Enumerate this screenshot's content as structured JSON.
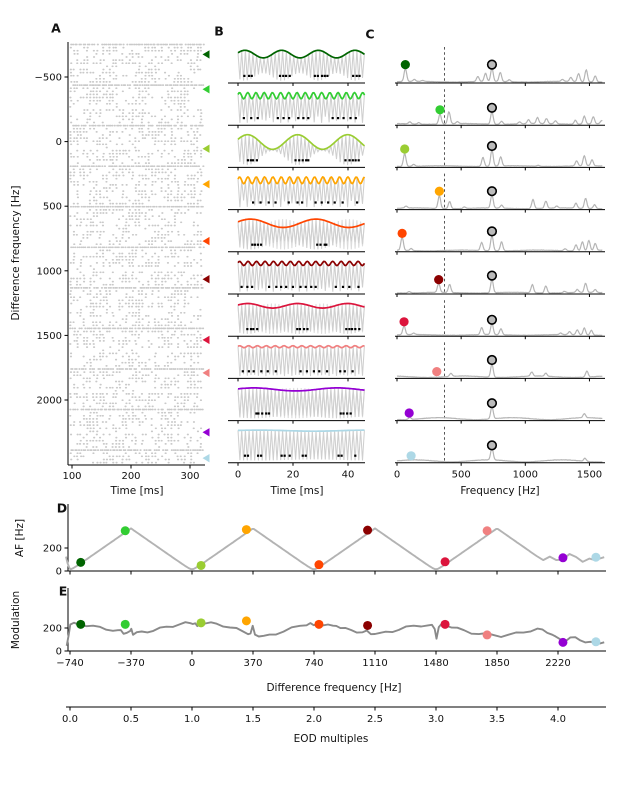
{
  "chart_data": {
    "type": "multi-panel-figure",
    "series": [
      {
        "name": "darkgreen",
        "color": "#006400",
        "df_hz": -675,
        "af_hz": 75,
        "modulation": 232,
        "beat": {
          "env_hz": 75,
          "depth": 0.5,
          "style": "smooth"
        },
        "spectrum": {
          "dot_hz": 65,
          "dot_h": 13,
          "floor": 0.8,
          "peaks": [
            [
              65,
              13
            ],
            [
              135,
              2
            ],
            [
              200,
              1
            ],
            [
              630,
              5
            ],
            [
              690,
              8
            ],
            [
              740,
              13
            ],
            [
              805,
              9
            ],
            [
              875,
              2
            ],
            [
              1290,
              2
            ],
            [
              1355,
              4
            ],
            [
              1415,
              8
            ],
            [
              1475,
              12
            ],
            [
              1545,
              6
            ]
          ]
        }
      },
      {
        "name": "limegreen",
        "color": "#32cd32",
        "df_hz": -405,
        "af_hz": 350,
        "modulation": 232,
        "beat": {
          "env_hz": 335,
          "depth": 0.42,
          "style": "jagged"
        },
        "spectrum": {
          "dot_hz": 335,
          "dot_h": 10,
          "floor": 0.8,
          "peaks": [
            [
              100,
              2
            ],
            [
              170,
              1.5
            ],
            [
              335,
              10
            ],
            [
              405,
              12
            ],
            [
              470,
              2
            ],
            [
              740,
              12
            ],
            [
              815,
              3
            ],
            [
              955,
              2
            ],
            [
              1025,
              4
            ],
            [
              1095,
              6
            ],
            [
              1165,
              5
            ],
            [
              1235,
              3
            ],
            [
              1390,
              4
            ],
            [
              1460,
              8
            ],
            [
              1530,
              7
            ],
            [
              1595,
              3
            ]
          ]
        }
      },
      {
        "name": "yellowgreen",
        "color": "#9acd32",
        "df_hz": 55,
        "af_hz": 48,
        "modulation": 245,
        "beat": {
          "env_hz": 55,
          "depth": 0.96,
          "style": "smooth"
        },
        "spectrum": {
          "dot_hz": 60,
          "dot_h": 13,
          "floor": 0.8,
          "peaks": [
            [
              60,
              13
            ],
            [
              130,
              2
            ],
            [
              670,
              9
            ],
            [
              740,
              16
            ],
            [
              808,
              9
            ],
            [
              1100,
              1
            ],
            [
              1400,
              5
            ],
            [
              1460,
              10
            ],
            [
              1520,
              6
            ]
          ]
        }
      },
      {
        "name": "orange",
        "color": "#ffa500",
        "df_hz": 330,
        "af_hz": 360,
        "modulation": 262,
        "beat": {
          "env_hz": 330,
          "depth": 0.45,
          "style": "jagged"
        },
        "spectrum": {
          "dot_hz": 330,
          "dot_h": 13,
          "floor": 0.8,
          "peaks": [
            [
              70,
              2
            ],
            [
              330,
              13
            ],
            [
              410,
              7
            ],
            [
              525,
              1.5
            ],
            [
              740,
              13
            ],
            [
              815,
              3
            ],
            [
              1060,
              9
            ],
            [
              1160,
              7
            ],
            [
              1245,
              2
            ],
            [
              1395,
              5
            ],
            [
              1470,
              10
            ],
            [
              1540,
              4
            ]
          ]
        }
      },
      {
        "name": "orangered",
        "color": "#ff4500",
        "df_hz": 770,
        "af_hz": 55,
        "modulation": 232,
        "beat": {
          "env_hz": 42,
          "depth": 0.55,
          "style": "smooth-cross"
        },
        "spectrum": {
          "dot_hz": 40,
          "dot_h": 13,
          "floor": 0.8,
          "peaks": [
            [
              40,
              13
            ],
            [
              110,
              2
            ],
            [
              660,
              8
            ],
            [
              740,
              15
            ],
            [
              815,
              9
            ],
            [
              1310,
              2
            ],
            [
              1395,
              6
            ],
            [
              1445,
              9
            ],
            [
              1495,
              10
            ],
            [
              1545,
              7
            ]
          ]
        }
      },
      {
        "name": "darkred",
        "color": "#8b0000",
        "df_hz": 1065,
        "af_hz": 355,
        "modulation": 222,
        "beat": {
          "env_hz": 325,
          "depth": 0.28,
          "style": "jagged"
        },
        "spectrum": {
          "dot_hz": 325,
          "dot_h": 9,
          "floor": 0.8,
          "peaks": [
            [
              95,
              1.5
            ],
            [
              325,
              9
            ],
            [
              410,
              8
            ],
            [
              740,
              13
            ],
            [
              1055,
              8
            ],
            [
              1160,
              7
            ],
            [
              1305,
              1.5
            ],
            [
              1405,
              3
            ],
            [
              1470,
              9
            ],
            [
              1545,
              3
            ]
          ]
        }
      },
      {
        "name": "crimson",
        "color": "#dc143c",
        "df_hz": 1535,
        "af_hz": 80,
        "modulation": 232,
        "beat": {
          "env_hz": 55,
          "depth": 0.3,
          "style": "smooth-cross"
        },
        "spectrum": {
          "dot_hz": 55,
          "dot_h": 9,
          "floor": 0.8,
          "peaks": [
            [
              55,
              9
            ],
            [
              130,
              1.5
            ],
            [
              660,
              7
            ],
            [
              740,
              11
            ],
            [
              810,
              6
            ],
            [
              1275,
              1.5
            ],
            [
              1345,
              3
            ],
            [
              1405,
              5
            ],
            [
              1460,
              7
            ],
            [
              1515,
              5
            ]
          ]
        }
      },
      {
        "name": "lightcoral",
        "color": "#f08080",
        "df_hz": 1790,
        "af_hz": 350,
        "modulation": 140,
        "beat": {
          "env_hz": 310,
          "depth": 0.13,
          "style": "jagged"
        },
        "spectrum": {
          "dot_hz": 310,
          "dot_h": 1.4,
          "floor": 1.6,
          "peaks": [
            [
              420,
              3
            ],
            [
              740,
              13
            ],
            [
              1050,
              4
            ],
            [
              1160,
              3
            ],
            [
              1480,
              6
            ]
          ]
        }
      },
      {
        "name": "darkviolet",
        "color": "#9400d3",
        "df_hz": 2250,
        "af_hz": 115,
        "modulation": 75,
        "beat": {
          "env_hz": 33,
          "depth": 0.2,
          "style": "smooth-cross"
        },
        "spectrum": {
          "dot_hz": 95,
          "dot_h": 2.2,
          "floor": 2.2,
          "peaks": [
            [
              100,
              2
            ],
            [
              740,
              12
            ],
            [
              1460,
              4
            ]
          ]
        }
      },
      {
        "name": "lightblue",
        "color": "#add8e6",
        "df_hz": 2450,
        "af_hz": 120,
        "modulation": 80,
        "beat": {
          "env_hz": 25,
          "depth": 0.07,
          "style": "smooth"
        },
        "spectrum": {
          "dot_hz": 110,
          "dot_h": 1.6,
          "floor": 2.2,
          "peaks": [
            [
              740,
              12
            ],
            [
              1465,
              3
            ]
          ]
        }
      }
    ],
    "panelA": {
      "label": "A",
      "xlabel": "Time [ms]",
      "ylabel": "Difference frequency [Hz]",
      "xticks": [
        {
          "v": 100,
          "label": "100"
        },
        {
          "v": 200,
          "label": "200"
        },
        {
          "v": 300,
          "label": "300"
        }
      ],
      "yticks": [
        {
          "v": -500,
          "label": "−500"
        },
        {
          "v": 0,
          "label": "0"
        },
        {
          "v": 500,
          "label": "500"
        },
        {
          "v": 1000,
          "label": "1000"
        },
        {
          "v": 1500,
          "label": "1500"
        },
        {
          "v": 2000,
          "label": "2000"
        }
      ],
      "x_range_ms": [
        93,
        325
      ],
      "y_range_hz": [
        -771,
        2503
      ]
    },
    "panelB": {
      "label": "B",
      "xlabel": "Time [ms]",
      "carrier_hz": 740,
      "duration_ms": 46,
      "xticks": [
        {
          "v": 0,
          "label": "0"
        },
        {
          "v": 20,
          "label": "20"
        },
        {
          "v": 40,
          "label": "40"
        }
      ]
    },
    "panelC": {
      "label": "C",
      "xlabel": "Frequency [Hz]",
      "dashed_line_hz": 370,
      "eod_peak_hz": 740,
      "xticks": [
        {
          "v": 0,
          "label": "0"
        },
        {
          "v": 500,
          "label": "500"
        },
        {
          "v": 1000,
          "label": "1000"
        },
        {
          "v": 1500,
          "label": "1500"
        }
      ],
      "freq_range_hz": [
        0,
        1600
      ]
    },
    "panelD": {
      "label": "D",
      "ylabel": "AF [Hz]",
      "fold_period_hz": 740,
      "yticks": [
        {
          "v": 0,
          "label": "0"
        },
        {
          "v": 200,
          "label": "200"
        }
      ],
      "curve_head": [
        [
          -764,
          125
        ],
        [
          -755,
          70
        ],
        [
          -745,
          30
        ]
      ],
      "curve_tail": [
        [
          2050,
          170
        ],
        [
          2090,
          130
        ],
        [
          2130,
          95
        ],
        [
          2170,
          125
        ],
        [
          2210,
          95
        ],
        [
          2250,
          100
        ],
        [
          2290,
          148
        ],
        [
          2330,
          122
        ],
        [
          2370,
          80
        ],
        [
          2410,
          108
        ],
        [
          2450,
          93
        ],
        [
          2475,
          110
        ],
        [
          2500,
          120
        ]
      ]
    },
    "panelE": {
      "label": "E",
      "ylabel": "Modulation",
      "xlabel": "Difference frequency [Hz]",
      "yticks": [
        {
          "v": 0,
          "label": "0"
        },
        {
          "v": 200,
          "label": "200"
        }
      ],
      "xticks": [
        {
          "v": -740,
          "label": "−740"
        },
        {
          "v": -370,
          "label": "−370"
        },
        {
          "v": 0,
          "label": "0"
        },
        {
          "v": 370,
          "label": "370"
        },
        {
          "v": 740,
          "label": "740"
        },
        {
          "v": 1110,
          "label": "1110"
        },
        {
          "v": 1480,
          "label": "1480"
        },
        {
          "v": 1850,
          "label": "1850"
        },
        {
          "v": 2220,
          "label": "2220"
        }
      ],
      "curve": [
        [
          -760,
          45
        ],
        [
          -748,
          150
        ],
        [
          -738,
          228
        ],
        [
          -715,
          236
        ],
        [
          -680,
          230
        ],
        [
          -640,
          224
        ],
        [
          -600,
          213
        ],
        [
          -560,
          204
        ],
        [
          -520,
          194
        ],
        [
          -480,
          180
        ],
        [
          -450,
          171
        ],
        [
          -432,
          180
        ],
        [
          -415,
          160
        ],
        [
          -395,
          157
        ],
        [
          -375,
          165
        ],
        [
          -368,
          197
        ],
        [
          -358,
          150
        ],
        [
          -335,
          157
        ],
        [
          -305,
          162
        ],
        [
          -270,
          170
        ],
        [
          -235,
          180
        ],
        [
          -195,
          194
        ],
        [
          -155,
          208
        ],
        [
          -115,
          220
        ],
        [
          -75,
          232
        ],
        [
          -40,
          240
        ],
        [
          -10,
          244
        ],
        [
          5,
          245
        ],
        [
          20,
          236
        ],
        [
          32,
          208
        ],
        [
          48,
          242
        ],
        [
          80,
          246
        ],
        [
          115,
          241
        ],
        [
          150,
          233
        ],
        [
          190,
          222
        ],
        [
          230,
          206
        ],
        [
          270,
          190
        ],
        [
          310,
          170
        ],
        [
          340,
          156
        ],
        [
          355,
          149
        ],
        [
          368,
          210
        ],
        [
          382,
          148
        ],
        [
          405,
          134
        ],
        [
          435,
          124
        ],
        [
          470,
          137
        ],
        [
          510,
          153
        ],
        [
          555,
          172
        ],
        [
          605,
          196
        ],
        [
          655,
          218
        ],
        [
          695,
          234
        ],
        [
          718,
          241
        ],
        [
          738,
          214
        ],
        [
          758,
          238
        ],
        [
          790,
          230
        ],
        [
          825,
          224
        ],
        [
          855,
          213
        ],
        [
          875,
          227
        ],
        [
          900,
          204
        ],
        [
          930,
          191
        ],
        [
          965,
          180
        ],
        [
          1000,
          170
        ],
        [
          1035,
          162
        ],
        [
          1060,
          168
        ],
        [
          1085,
          149
        ],
        [
          1110,
          157
        ],
        [
          1140,
          152
        ],
        [
          1175,
          160
        ],
        [
          1215,
          172
        ],
        [
          1255,
          190
        ],
        [
          1300,
          205
        ],
        [
          1345,
          216
        ],
        [
          1390,
          223
        ],
        [
          1430,
          224
        ],
        [
          1455,
          217
        ],
        [
          1472,
          193
        ],
        [
          1483,
          117
        ],
        [
          1497,
          204
        ],
        [
          1517,
          232
        ],
        [
          1545,
          225
        ],
        [
          1575,
          211
        ],
        [
          1610,
          194
        ],
        [
          1650,
          176
        ],
        [
          1695,
          160
        ],
        [
          1740,
          150
        ],
        [
          1785,
          145
        ],
        [
          1830,
          138
        ],
        [
          1875,
          132
        ],
        [
          1920,
          139
        ],
        [
          1965,
          151
        ],
        [
          2010,
          165
        ],
        [
          2055,
          179
        ],
        [
          2095,
          188
        ],
        [
          2125,
          181
        ],
        [
          2155,
          166
        ],
        [
          2185,
          146
        ],
        [
          2205,
          117
        ],
        [
          2235,
          99
        ],
        [
          2265,
          94
        ],
        [
          2295,
          117
        ],
        [
          2325,
          110
        ],
        [
          2355,
          96
        ],
        [
          2385,
          84
        ],
        [
          2415,
          74
        ],
        [
          2445,
          71
        ],
        [
          2475,
          74
        ],
        [
          2500,
          81
        ]
      ]
    },
    "eod_axis": {
      "label": "EOD multiples",
      "eodf_hz": 740,
      "ticks": [
        {
          "v": 0,
          "label": "0.0"
        },
        {
          "v": 0.5,
          "label": "0.5"
        },
        {
          "v": 1,
          "label": "1.0"
        },
        {
          "v": 1.5,
          "label": "1.5"
        },
        {
          "v": 2,
          "label": "2.0"
        },
        {
          "v": 2.5,
          "label": "2.5"
        },
        {
          "v": 3,
          "label": "3.0"
        },
        {
          "v": 3.5,
          "label": "3.5"
        },
        {
          "v": 4,
          "label": "4.0"
        }
      ]
    },
    "style": {
      "raster_gray": "#c9c9c9",
      "spectrum_gray": "#b5b5b5",
      "carrier_gray": "#cfcfcf",
      "carrier_gray2": "#dcdcdc",
      "d_curve_gray": "#b3b3b3",
      "e_curve_gray": "#8a8a8a",
      "eod_dot_fill": "#bbbbbb",
      "axis_color": "#000000"
    }
  }
}
